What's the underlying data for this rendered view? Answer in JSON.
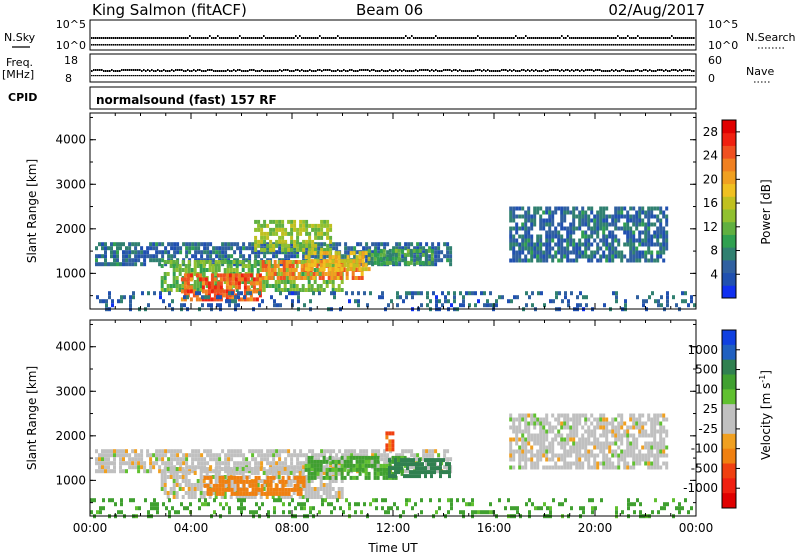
{
  "header": {
    "station": "King Salmon (fitACF)",
    "beam": "Beam 06",
    "date": "02/Aug/2017"
  },
  "status_panels": {
    "nsky_label": "N.Sky",
    "nsky_ticks": [
      "10^5",
      "10^0"
    ],
    "nsearch_label": "N.Search",
    "nsearch_ticks": [
      "10^5",
      "10^0"
    ],
    "freq_label": "Freq.",
    "freq_unit": "[MHz]",
    "freq_ticks": [
      "18",
      "8"
    ],
    "nave_label": "Nave",
    "nave_ticks": [
      "60",
      "0"
    ],
    "cpid_label": "CPID",
    "cpid_text": "normalsound (fast) 157 RF"
  },
  "chart_data": [
    {
      "type": "heatmap",
      "title": "",
      "xlabel": "",
      "ylabel": "Slant Range [km]",
      "xlim": [
        0,
        24
      ],
      "ylim": [
        200,
        4600
      ],
      "y_ticks": [
        "1000",
        "2000",
        "3000",
        "4000"
      ],
      "colorbar": {
        "label": "Power [dB]",
        "ticks": [
          "4",
          "8",
          "12",
          "16",
          "20",
          "24",
          "28"
        ],
        "range": [
          0,
          30
        ],
        "colors": [
          "#1030f0",
          "#2050b0",
          "#3060a0",
          "#308070",
          "#30a050",
          "#60b040",
          "#90c030",
          "#c0c020",
          "#f0c020",
          "#f0a020",
          "#f08020",
          "#f05020",
          "#f02010",
          "#e00000"
        ]
      },
      "regions": [
        {
          "t": [
            0.2,
            14.3
          ],
          "r": [
            1200,
            1700
          ],
          "value": 6
        },
        {
          "t": [
            2.8,
            10.0
          ],
          "r": [
            600,
            1300
          ],
          "value": 12
        },
        {
          "t": [
            3.6,
            6.8
          ],
          "r": [
            400,
            1000
          ],
          "value": 24
        },
        {
          "t": [
            6.8,
            10.8
          ],
          "r": [
            900,
            1300
          ],
          "value": 22
        },
        {
          "t": [
            6.5,
            9.5
          ],
          "r": [
            1500,
            2200
          ],
          "value": 14
        },
        {
          "t": [
            8.5,
            11.0
          ],
          "r": [
            1100,
            1500
          ],
          "value": 18
        },
        {
          "t": [
            11.0,
            13.5
          ],
          "r": [
            1200,
            1550
          ],
          "value": 10
        },
        {
          "t": [
            16.6,
            22.8
          ],
          "r": [
            1300,
            2500
          ],
          "value": 6
        },
        {
          "t": [
            0.0,
            24.0
          ],
          "r": [
            200,
            600
          ],
          "value": 5
        }
      ]
    },
    {
      "type": "heatmap",
      "title": "",
      "xlabel": "Time UT",
      "ylabel": "Slant Range [km]",
      "xlim": [
        0,
        24
      ],
      "ylim": [
        200,
        4600
      ],
      "x_ticks": [
        "00:00",
        "04:00",
        "08:00",
        "12:00",
        "16:00",
        "20:00",
        "00:00"
      ],
      "y_ticks": [
        "1000",
        "2000",
        "3000",
        "4000"
      ],
      "colorbar": {
        "label": "Velocity [m s",
        "label_sup": "-1",
        "label_close": "]",
        "ticks": [
          "1000",
          "500",
          "100",
          "25",
          "-25",
          "-100",
          "-500",
          "-1000"
        ],
        "colors": [
          "#1040e0",
          "#2060c0",
          "#308050",
          "#40a030",
          "#60c030",
          "#c0c0c0",
          "#c0c0c0",
          "#f0a020",
          "#f08010",
          "#f04010",
          "#f02010",
          "#e00000"
        ]
      },
      "regions": [
        {
          "t": [
            0.2,
            14.3
          ],
          "r": [
            1200,
            1700
          ],
          "value": 0
        },
        {
          "t": [
            2.8,
            10.0
          ],
          "r": [
            600,
            1300
          ],
          "value": 0
        },
        {
          "t": [
            4.5,
            8.5
          ],
          "r": [
            700,
            1100
          ],
          "value": -200
        },
        {
          "t": [
            8.5,
            12.5
          ],
          "r": [
            1100,
            1550
          ],
          "value": 50
        },
        {
          "t": [
            11.8,
            14.2
          ],
          "r": [
            1100,
            1500
          ],
          "value": 150
        },
        {
          "t": [
            11.7,
            12.0
          ],
          "r": [
            1700,
            2100
          ],
          "value": -300
        },
        {
          "t": [
            16.6,
            22.8
          ],
          "r": [
            1300,
            2500
          ],
          "value": 0
        },
        {
          "t": [
            0.0,
            24.0
          ],
          "r": [
            200,
            600
          ],
          "value": 60
        }
      ]
    }
  ]
}
